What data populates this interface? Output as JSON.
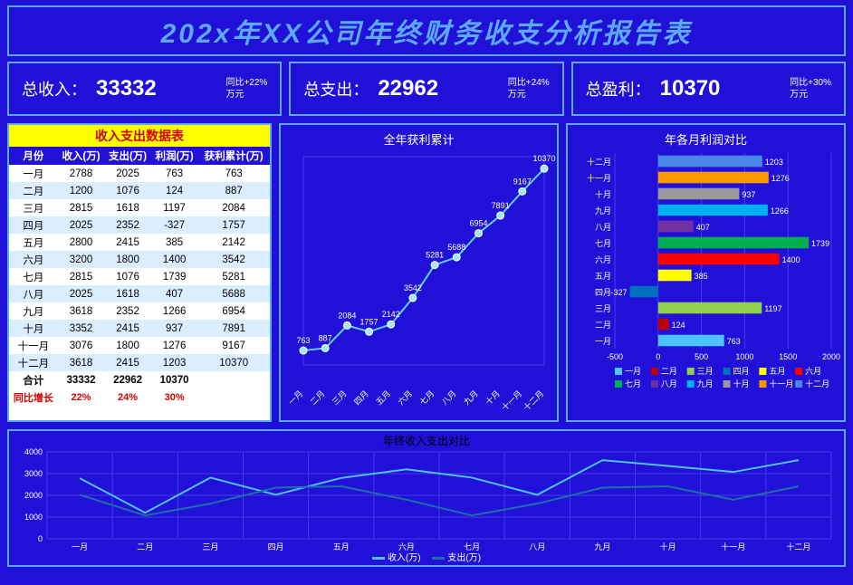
{
  "title": "202x年XX公司年终财务收支分析报告表",
  "colors": {
    "bg": "#2010d8",
    "border": "#5da9ff",
    "yellow": "#ffff00",
    "red": "#d40000",
    "white": "#ffffff",
    "grid": "#4a3be8",
    "line_income": "#4fc3ff",
    "line_expense": "#1e6fa8",
    "cum_line": "#5fd0ff",
    "cum_marker": "#8be4ff"
  },
  "kpi": [
    {
      "label": "总收入：",
      "value": "33332",
      "yoy_top": "同比+22%",
      "yoy_bot": "万元"
    },
    {
      "label": "总支出：",
      "value": "22962",
      "yoy_top": "同比+24%",
      "yoy_bot": "万元"
    },
    {
      "label": "总盈利：",
      "value": "10370",
      "yoy_top": "同比+30%",
      "yoy_bot": "万元"
    }
  ],
  "table": {
    "title": "收入支出数据表",
    "headers": [
      "月份",
      "收入(万)",
      "支出(万)",
      "利润(万)",
      "获利累计(万)"
    ],
    "rows": [
      [
        "一月",
        "2788",
        "2025",
        "763",
        "763"
      ],
      [
        "二月",
        "1200",
        "1076",
        "124",
        "887"
      ],
      [
        "三月",
        "2815",
        "1618",
        "1197",
        "2084"
      ],
      [
        "四月",
        "2025",
        "2352",
        "-327",
        "1757"
      ],
      [
        "五月",
        "2800",
        "2415",
        "385",
        "2142"
      ],
      [
        "六月",
        "3200",
        "1800",
        "1400",
        "3542"
      ],
      [
        "七月",
        "2815",
        "1076",
        "1739",
        "5281"
      ],
      [
        "八月",
        "2025",
        "1618",
        "407",
        "5688"
      ],
      [
        "九月",
        "3618",
        "2352",
        "1266",
        "6954"
      ],
      [
        "十月",
        "3352",
        "2415",
        "937",
        "7891"
      ],
      [
        "十一月",
        "3076",
        "1800",
        "1276",
        "9167"
      ],
      [
        "十二月",
        "3618",
        "2415",
        "1203",
        "10370"
      ]
    ],
    "sum": [
      "合计",
      "33332",
      "22962",
      "10370",
      ""
    ],
    "yoy": [
      "同比增长",
      "22%",
      "24%",
      "30%",
      ""
    ]
  },
  "cum_chart": {
    "type": "line",
    "title": "全年获利累计",
    "months": [
      "一月",
      "二月",
      "三月",
      "四月",
      "五月",
      "六月",
      "七月",
      "八月",
      "九月",
      "十月",
      "十一月",
      "十二月"
    ],
    "values": [
      763,
      887,
      2084,
      1757,
      2142,
      3542,
      5281,
      5688,
      6954,
      7891,
      9167,
      10370
    ],
    "ymin": 0,
    "ymax": 11000,
    "line_color": "#5fd0ff",
    "marker_color": "#a0e8ff",
    "label_color": "#ffffff",
    "label_fontsize": 9
  },
  "profit_bar": {
    "type": "bar-horizontal",
    "title": "年各月利润对比",
    "months_rev": [
      "十二月",
      "十一月",
      "十月",
      "九月",
      "八月",
      "七月",
      "六月",
      "五月",
      "四月",
      "三月",
      "二月",
      "一月"
    ],
    "values_rev": [
      1203,
      1276,
      937,
      1266,
      407,
      1739,
      1400,
      385,
      -327,
      1197,
      124,
      763
    ],
    "xmin": -500,
    "xmax": 2000,
    "xtick_step": 500,
    "bar_colors_rev": [
      "#4a86e8",
      "#ff9900",
      "#999999",
      "#00b0f0",
      "#7030a0",
      "#00b050",
      "#ff0000",
      "#ffff00",
      "#0070c0",
      "#92d050",
      "#c00000",
      "#4fc3ff"
    ],
    "label_fontsize": 9
  },
  "bottom_chart": {
    "type": "line",
    "title": "年终收入支出对比",
    "months": [
      "一月",
      "二月",
      "三月",
      "四月",
      "五月",
      "六月",
      "七月",
      "八月",
      "九月",
      "十月",
      "十一月",
      "十二月"
    ],
    "income": [
      2788,
      1200,
      2815,
      2025,
      2800,
      3200,
      2815,
      2025,
      3618,
      3352,
      3076,
      3618
    ],
    "expense": [
      2025,
      1076,
      1618,
      2352,
      2415,
      1800,
      1076,
      1618,
      2352,
      2415,
      1800,
      2415
    ],
    "ymin": 0,
    "ymax": 4000,
    "ytick_step": 1000,
    "income_color": "#4fc3ff",
    "expense_color": "#1e6fa8",
    "legend": [
      "收入(万)",
      "支出(万)"
    ]
  }
}
